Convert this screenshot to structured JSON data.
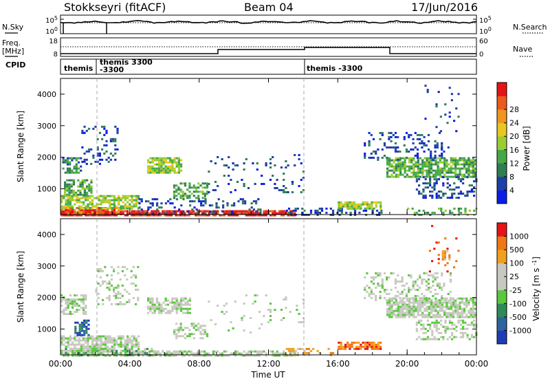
{
  "header": {
    "station": "Stokkseyri (fitACF)",
    "beam": "Beam 04",
    "date": "17/Jun/2016"
  },
  "left_labels": {
    "nsky": "N.Sky",
    "freq": "Freq.",
    "mhz": "[MHz]",
    "cpid": "CPID"
  },
  "right_labels": {
    "nsearch": "N.Search",
    "nave": "Nave"
  },
  "noise_axis": {
    "left_ticks": [
      "10^5",
      "10^0"
    ],
    "right_ticks": [
      "10^5",
      "10^0"
    ]
  },
  "freq_axis": {
    "left_ticks": [
      "18",
      "8"
    ],
    "right_ticks": [
      "60",
      "0"
    ]
  },
  "cpid_segments": [
    {
      "label": "themis",
      "start_hour": 0.0
    },
    {
      "label": "themis 3300",
      "label2": "-3300",
      "start_hour": 1.8
    },
    {
      "label": "themis -3300",
      "start_hour": 14.0
    }
  ],
  "time_ticks": [
    "00:00",
    "04:00",
    "08:00",
    "12:00",
    "16:00",
    "20:00",
    "00:00"
  ],
  "xlabel": "Time UT",
  "chart_data": [
    {
      "type": "heatmap",
      "ylabel": "Slant Range [km]",
      "ylim": [
        180,
        4500
      ],
      "xlim_hours": [
        0,
        24
      ],
      "y_ticks": [
        "1000",
        "2000",
        "3000",
        "4000"
      ],
      "colorbar": {
        "label": "Power [dB]",
        "tick_labels": [
          "4",
          "8",
          "12",
          "16",
          "20",
          "24",
          "28"
        ],
        "colors": [
          "#0a1ee6",
          "#1f3fa8",
          "#2e7d53",
          "#46a846",
          "#9acd32",
          "#e6c820",
          "#f0961e",
          "#ec5a1e",
          "#e61414"
        ]
      },
      "regions": [
        {
          "t": [
            0.0,
            13.5
          ],
          "r": [
            180,
            320
          ],
          "level": 8,
          "density": 0.85
        },
        {
          "t": [
            0.0,
            3.5
          ],
          "r": [
            180,
            420
          ],
          "level": 7,
          "density": 0.8
        },
        {
          "t": [
            0.0,
            4.5
          ],
          "r": [
            400,
            800
          ],
          "level": 4,
          "density": 0.7
        },
        {
          "t": [
            0.2,
            1.8
          ],
          "r": [
            800,
            1300
          ],
          "level": 3,
          "density": 0.7
        },
        {
          "t": [
            0.1,
            1.2
          ],
          "r": [
            1500,
            2000
          ],
          "level": 2,
          "density": 0.6
        },
        {
          "t": [
            1.2,
            3.3
          ],
          "r": [
            1800,
            3000
          ],
          "level": 1,
          "density": 0.2
        },
        {
          "t": [
            5.0,
            7.0
          ],
          "r": [
            1500,
            2000
          ],
          "level": 4,
          "density": 0.75
        },
        {
          "t": [
            6.5,
            8.5
          ],
          "r": [
            700,
            1200
          ],
          "level": 3,
          "density": 0.55
        },
        {
          "t": [
            4.5,
            11.5
          ],
          "r": [
            200,
            700
          ],
          "level": 1,
          "density": 0.25
        },
        {
          "t": [
            8.5,
            14.0
          ],
          "r": [
            900,
            2100
          ],
          "level": 1,
          "density": 0.08
        },
        {
          "t": [
            13.0,
            18.5
          ],
          "r": [
            180,
            400
          ],
          "level": 1,
          "density": 0.35
        },
        {
          "t": [
            16.0,
            18.5
          ],
          "r": [
            400,
            600
          ],
          "level": 4,
          "density": 0.8
        },
        {
          "t": [
            18.8,
            24.0
          ],
          "r": [
            1400,
            2000
          ],
          "level": 3,
          "density": 0.75
        },
        {
          "t": [
            17.5,
            22.5
          ],
          "r": [
            1900,
            2800
          ],
          "level": 1,
          "density": 0.22
        },
        {
          "t": [
            20.5,
            24.0
          ],
          "r": [
            700,
            1400
          ],
          "level": 1,
          "density": 0.3
        },
        {
          "t": [
            21.0,
            23.0
          ],
          "r": [
            2800,
            4300
          ],
          "level": 1,
          "density": 0.07
        },
        {
          "t": [
            20.0,
            24.0
          ],
          "r": [
            180,
            400
          ],
          "level": 3,
          "density": 0.25
        }
      ]
    },
    {
      "type": "heatmap",
      "ylabel": "Slant Range [km]",
      "ylim": [
        180,
        4500
      ],
      "xlim_hours": [
        0,
        24
      ],
      "y_ticks": [
        "1000",
        "2000",
        "3000",
        "4000"
      ],
      "colorbar": {
        "label": "Velocity [m s^-1]",
        "tick_labels": [
          "1000",
          "500",
          "100",
          "25",
          "-25",
          "-100",
          "-500",
          "-1000"
        ],
        "colors": [
          "#1e3cb4",
          "#2d64a0",
          "#2e8b57",
          "#5ac83c",
          "#c8c8c0",
          "#c8c8c0",
          "#f0a01e",
          "#f07814",
          "#e61414"
        ]
      },
      "regions": [
        {
          "t": [
            0.0,
            13.5
          ],
          "r": [
            180,
            320
          ],
          "level": 4,
          "density": 0.7
        },
        {
          "t": [
            0.0,
            4.5
          ],
          "r": [
            300,
            800
          ],
          "level": 4,
          "density": 0.75
        },
        {
          "t": [
            0.8,
            1.6
          ],
          "r": [
            800,
            1300
          ],
          "level": 1,
          "density": 0.65
        },
        {
          "t": [
            0.0,
            1.5
          ],
          "r": [
            1500,
            2100
          ],
          "level": 4,
          "density": 0.6
        },
        {
          "t": [
            2.0,
            4.5
          ],
          "r": [
            1800,
            3000
          ],
          "level": 4,
          "density": 0.25
        },
        {
          "t": [
            5.0,
            7.5
          ],
          "r": [
            1500,
            2000
          ],
          "level": 4,
          "density": 0.6
        },
        {
          "t": [
            6.5,
            8.5
          ],
          "r": [
            700,
            1200
          ],
          "level": 4,
          "density": 0.5
        },
        {
          "t": [
            0.0,
            6.0
          ],
          "r": [
            180,
            400
          ],
          "level": 3,
          "density": 0.3
        },
        {
          "t": [
            8.5,
            14.0
          ],
          "r": [
            900,
            2100
          ],
          "level": 4,
          "density": 0.07
        },
        {
          "t": [
            13.0,
            16.0
          ],
          "r": [
            180,
            400
          ],
          "level": 6,
          "density": 0.35
        },
        {
          "t": [
            16.0,
            18.5
          ],
          "r": [
            350,
            600
          ],
          "level": 7,
          "density": 0.8
        },
        {
          "t": [
            18.8,
            24.0
          ],
          "r": [
            1400,
            2000
          ],
          "level": 4,
          "density": 0.8
        },
        {
          "t": [
            17.5,
            22.5
          ],
          "r": [
            1900,
            2800
          ],
          "level": 4,
          "density": 0.25
        },
        {
          "t": [
            20.5,
            24.0
          ],
          "r": [
            700,
            1300
          ],
          "level": 4,
          "density": 0.35
        },
        {
          "t": [
            22.0,
            22.5
          ],
          "r": [
            3200,
            3500
          ],
          "level": 6,
          "density": 0.7
        },
        {
          "t": [
            21.0,
            23.0
          ],
          "r": [
            2800,
            4300
          ],
          "level": 8,
          "density": 0.04
        }
      ]
    }
  ]
}
